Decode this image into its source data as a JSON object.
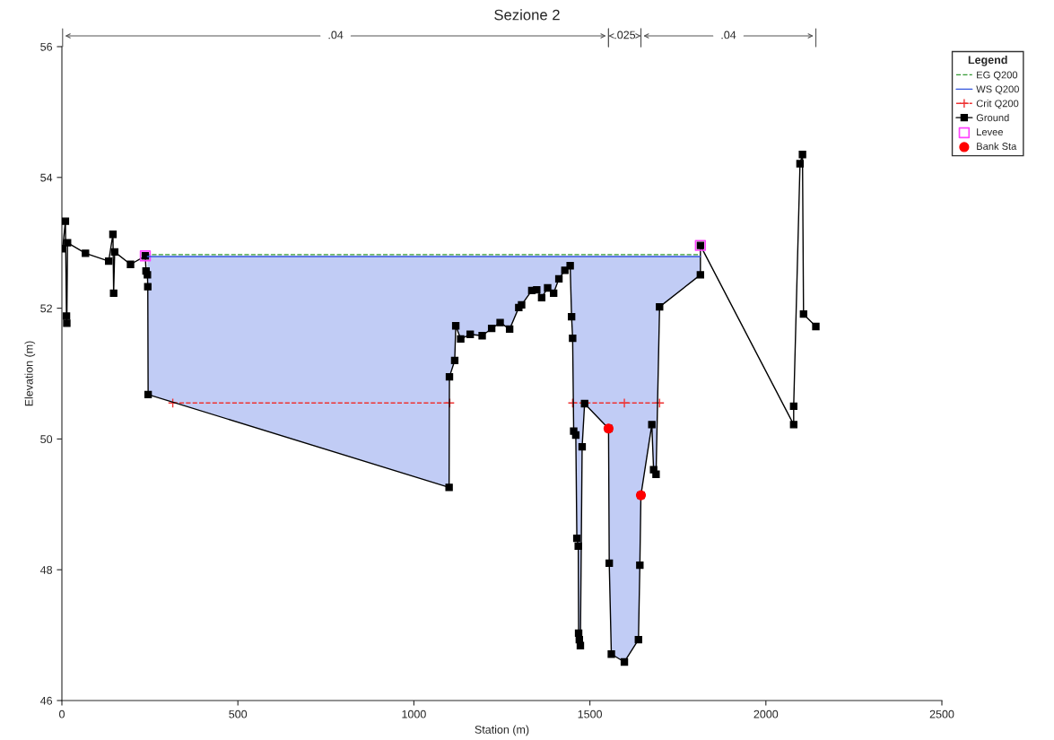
{
  "chart_data": {
    "type": "line",
    "title": "Sezione 2",
    "xlabel": "Station (m)",
    "ylabel": "Elevation (m)",
    "legend_title": "Legend",
    "legend": "right",
    "xlim": [
      0,
      2500
    ],
    "xticks": [
      0,
      500,
      1000,
      1500,
      2000,
      2500
    ],
    "ylim": [
      46,
      56
    ],
    "yticks": [
      46,
      48,
      50,
      52,
      54,
      56
    ],
    "grid": false,
    "annotations": [
      ".04",
      ".025",
      ".04"
    ],
    "series": [
      {
        "name": "EG Q200",
        "color": "#339933",
        "line_style": "dashed",
        "marker": "none",
        "x": [
          237,
          1814
        ],
        "values": [
          52.82,
          52.82
        ]
      },
      {
        "name": "WS Q200",
        "color": "#3355dd",
        "line_style": "solid",
        "marker": "none",
        "x": [
          243,
          244,
          245,
          1100,
          1101,
          1116,
          1119,
          1133,
          1160,
          1194,
          1221,
          1245,
          1272,
          1298,
          1306,
          1335,
          1349,
          1363,
          1380,
          1397,
          1412,
          1429,
          1444,
          1448,
          1451,
          1454,
          1460,
          1463,
          1467,
          1468,
          1470,
          1473,
          1478,
          1485,
          1553,
          1555,
          1561,
          1598,
          1638,
          1642,
          1645,
          1676,
          1681,
          1688,
          1698,
          1814
        ],
        "values": [
          52.79,
          52.79,
          52.79,
          52.79,
          52.79,
          52.79,
          52.79,
          52.79,
          52.79,
          52.79,
          52.79,
          52.79,
          52.79,
          52.79,
          52.79,
          52.79,
          52.79,
          52.79,
          52.79,
          52.79,
          52.79,
          52.79,
          52.79,
          52.79,
          52.79,
          52.79,
          52.79,
          52.79,
          52.79,
          52.79,
          52.79,
          52.79,
          52.79,
          52.79,
          52.79,
          52.79,
          52.79,
          52.79,
          52.79,
          52.79,
          52.79,
          52.79,
          52.79,
          52.79,
          52.79,
          52.79
        ],
        "upper": [
          52.79,
          52.79,
          52.79,
          52.79,
          52.79,
          52.79,
          52.79,
          52.79,
          52.79,
          52.79,
          52.79,
          52.79,
          52.79,
          52.79,
          52.79,
          52.79,
          52.79,
          52.79,
          52.79,
          52.79,
          52.79,
          52.79,
          52.79,
          52.79,
          52.79,
          52.79,
          52.79,
          52.79,
          52.79,
          52.79,
          52.79,
          52.79,
          52.79,
          52.79,
          52.79,
          52.79,
          52.79,
          52.79,
          52.79,
          52.79,
          52.79,
          52.79,
          52.79,
          52.79,
          52.79,
          52.79
        ],
        "lower": [
          52.51,
          52.33,
          50.68,
          49.26,
          50.95,
          51.2,
          51.73,
          51.53,
          51.6,
          51.58,
          51.69,
          51.78,
          51.68,
          52.01,
          52.05,
          52.27,
          52.28,
          52.16,
          52.31,
          52.23,
          52.45,
          52.58,
          52.65,
          51.87,
          51.54,
          50.12,
          50.06,
          48.48,
          48.36,
          47.03,
          46.93,
          46.84,
          49.88,
          50.54,
          50.16,
          48.1,
          46.71,
          46.59,
          46.93,
          48.07,
          49.14,
          50.22,
          49.53,
          49.46,
          52.02,
          52.51
        ]
      },
      {
        "name": "Crit Q200",
        "color": "#ee3333",
        "line_style": "dashed",
        "marker": "cross",
        "x": [
          315,
          1102,
          1280,
          1451,
          1598,
          1698
        ],
        "values": [
          50.55,
          50.55,
          null,
          50.55,
          50.55,
          50.55
        ]
      },
      {
        "name": "Ground",
        "color": "#000000",
        "line_style": "solid",
        "marker": "square",
        "x": [
          2,
          10,
          13,
          14,
          16,
          67,
          133,
          145,
          147,
          150,
          195,
          237,
          239,
          243,
          244,
          245,
          1100,
          1101,
          1116,
          1119,
          1133,
          1160,
          1194,
          1221,
          1245,
          1272,
          1298,
          1306,
          1335,
          1349,
          1363,
          1380,
          1397,
          1412,
          1429,
          1444,
          1448,
          1451,
          1454,
          1460,
          1463,
          1467,
          1468,
          1470,
          1473,
          1478,
          1485,
          1553,
          1555,
          1561,
          1598,
          1638,
          1642,
          1645,
          1676,
          1681,
          1688,
          1698,
          1814,
          1814,
          2079,
          2079,
          2097,
          2104,
          2107,
          2142
        ],
        "values": [
          52.91,
          53.33,
          51.88,
          51.77,
          53.0,
          52.84,
          52.72,
          53.13,
          52.23,
          52.86,
          52.67,
          52.8,
          52.57,
          52.51,
          52.33,
          50.68,
          49.26,
          50.95,
          51.2,
          51.73,
          51.53,
          51.6,
          51.58,
          51.69,
          51.78,
          51.68,
          52.01,
          52.05,
          52.27,
          52.28,
          52.16,
          52.31,
          52.23,
          52.45,
          52.58,
          52.65,
          51.87,
          51.54,
          50.12,
          50.06,
          48.48,
          48.36,
          47.03,
          46.93,
          46.84,
          49.88,
          50.54,
          50.16,
          48.1,
          46.71,
          46.59,
          46.93,
          48.07,
          49.14,
          50.22,
          49.53,
          49.46,
          52.02,
          52.51,
          52.96,
          50.22,
          50.5,
          54.21,
          54.35,
          51.91,
          51.72
        ]
      },
      {
        "name": "Levee",
        "type": "scatter",
        "color": "#ff44ff",
        "marker": "square",
        "x": [
          237,
          1814
        ],
        "values": [
          52.8,
          52.96
        ]
      },
      {
        "name": "Bank Sta",
        "type": "scatter",
        "color": "#ff0000",
        "marker": "circle",
        "x": [
          1553,
          1645
        ],
        "values": [
          50.16,
          49.14
        ]
      }
    ]
  }
}
